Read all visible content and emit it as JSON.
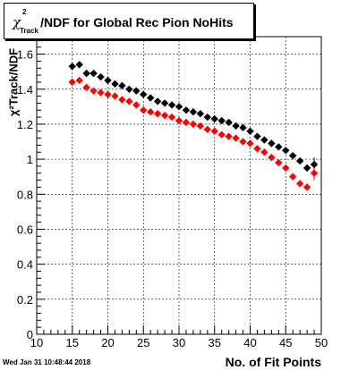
{
  "title": {
    "chi": "χ",
    "sup": "2",
    "sub": "Track",
    "rest": "/NDF for Global Rec Pion NoHits"
  },
  "timestamp": "Wed Jan 31 10:48:44 2018",
  "ylabel_text": "χ²Track/NDF",
  "chart_data": {
    "type": "scatter",
    "title": "χ²Track/NDF for Global Rec Pion NoHits",
    "xlabel": "No. of Fit Points",
    "ylabel": "χ²Track/NDF",
    "xlim": [
      10,
      50
    ],
    "ylim": [
      0,
      1.7
    ],
    "xticks": [
      10,
      15,
      20,
      25,
      30,
      35,
      40,
      45,
      50
    ],
    "yticks": [
      0,
      0.2,
      0.4,
      0.6,
      0.8,
      1,
      1.2,
      1.4,
      1.6
    ],
    "ytick_labels": [
      "0",
      "0.2",
      "0.4",
      "0.6",
      "0.8",
      "1",
      "1.2",
      "1.4",
      "1.6"
    ],
    "grid": true,
    "colors": {
      "series1": "#000000",
      "series2": "#ff0000"
    },
    "series": [
      {
        "color": "#000000",
        "points": [
          [
            15,
            1.53
          ],
          [
            16,
            1.54
          ],
          [
            17,
            1.49
          ],
          [
            18,
            1.49
          ],
          [
            19,
            1.47
          ],
          [
            20,
            1.45
          ],
          [
            21,
            1.43
          ],
          [
            22,
            1.42
          ],
          [
            23,
            1.4
          ],
          [
            24,
            1.39
          ],
          [
            25,
            1.37
          ],
          [
            26,
            1.35
          ],
          [
            27,
            1.33
          ],
          [
            28,
            1.32
          ],
          [
            29,
            1.31
          ],
          [
            30,
            1.3
          ],
          [
            31,
            1.28
          ],
          [
            32,
            1.27
          ],
          [
            33,
            1.26
          ],
          [
            34,
            1.24
          ],
          [
            35,
            1.23
          ],
          [
            36,
            1.22
          ],
          [
            37,
            1.21
          ],
          [
            38,
            1.19
          ],
          [
            39,
            1.18
          ],
          [
            40,
            1.16
          ],
          [
            41,
            1.13
          ],
          [
            42,
            1.11
          ],
          [
            43,
            1.09
          ],
          [
            44,
            1.07
          ],
          [
            45,
            1.05
          ],
          [
            46,
            1.02
          ],
          [
            47,
            0.99
          ],
          [
            48,
            0.95
          ],
          [
            49,
            0.97
          ]
        ],
        "errors": [
          [
            48,
            0.02
          ],
          [
            49,
            0.04
          ]
        ]
      },
      {
        "color": "#ff0000",
        "points": [
          [
            15,
            1.44
          ],
          [
            16,
            1.45
          ],
          [
            17,
            1.41
          ],
          [
            18,
            1.39
          ],
          [
            19,
            1.38
          ],
          [
            20,
            1.37
          ],
          [
            21,
            1.36
          ],
          [
            22,
            1.34
          ],
          [
            23,
            1.33
          ],
          [
            24,
            1.31
          ],
          [
            25,
            1.28
          ],
          [
            26,
            1.27
          ],
          [
            27,
            1.26
          ],
          [
            28,
            1.25
          ],
          [
            29,
            1.24
          ],
          [
            30,
            1.22
          ],
          [
            31,
            1.21
          ],
          [
            32,
            1.2
          ],
          [
            33,
            1.19
          ],
          [
            34,
            1.17
          ],
          [
            35,
            1.16
          ],
          [
            36,
            1.14
          ],
          [
            37,
            1.13
          ],
          [
            38,
            1.12
          ],
          [
            39,
            1.1
          ],
          [
            40,
            1.09
          ],
          [
            41,
            1.06
          ],
          [
            42,
            1.04
          ],
          [
            43,
            1.01
          ],
          [
            44,
            0.98
          ],
          [
            45,
            0.95
          ],
          [
            46,
            0.9
          ],
          [
            47,
            0.86
          ],
          [
            48,
            0.84
          ],
          [
            49,
            0.92
          ]
        ],
        "errors": [
          [
            48,
            0.02
          ],
          [
            49,
            0.04
          ]
        ]
      }
    ]
  }
}
